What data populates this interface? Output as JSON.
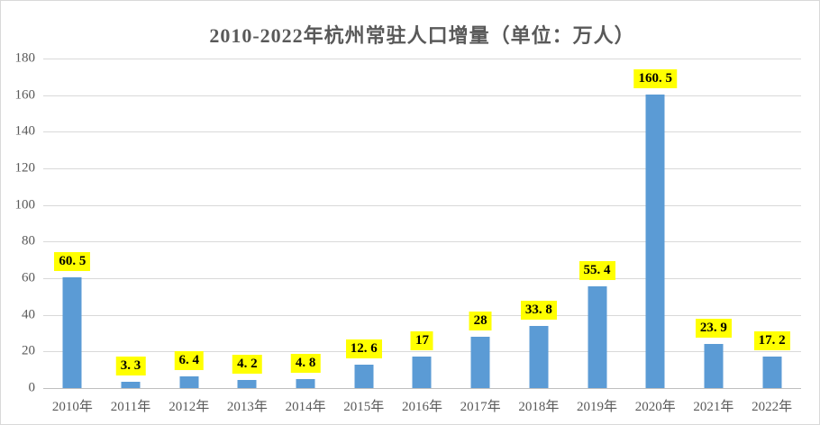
{
  "chart_data": {
    "type": "bar",
    "title": "2010-2022年杭州常驻人口增量（单位：万人）",
    "categories": [
      "2010年",
      "2011年",
      "2012年",
      "2013年",
      "2014年",
      "2015年",
      "2016年",
      "2017年",
      "2018年",
      "2019年",
      "2020年",
      "2021年",
      "2022年"
    ],
    "values": [
      60.5,
      3.3,
      6.4,
      4.2,
      4.8,
      12.6,
      17,
      28,
      33.8,
      55.4,
      160.5,
      23.9,
      17.2
    ],
    "value_labels": [
      "60. 5",
      "3. 3",
      "6. 4",
      "4. 2",
      "4. 8",
      "12. 6",
      "17",
      "28",
      "33. 8",
      "55. 4",
      "160. 5",
      "23. 9",
      "17. 2"
    ],
    "ylim": [
      0,
      180
    ],
    "yticks": [
      0,
      20,
      40,
      60,
      80,
      100,
      120,
      140,
      160,
      180
    ],
    "grid": true,
    "legend_position": "none",
    "colors": {
      "bar": "#5b9bd5",
      "value_label_bg": "#ffff00",
      "value_label_text": "#000000",
      "title_text": "#595959",
      "axis_text": "#595959",
      "gridline": "#d9d9d9",
      "axis_line": "#bfbfbf"
    }
  }
}
